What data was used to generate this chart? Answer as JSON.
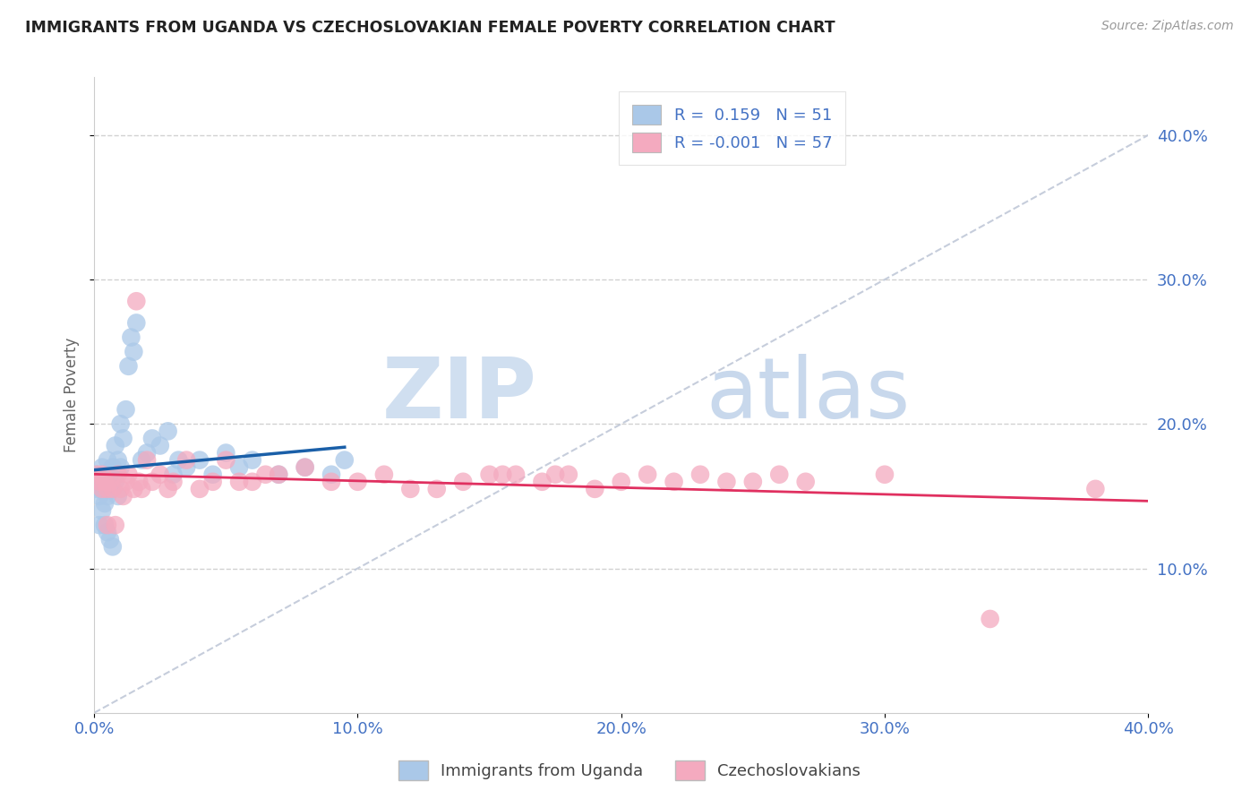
{
  "title": "IMMIGRANTS FROM UGANDA VS CZECHOSLOVAKIAN FEMALE POVERTY CORRELATION CHART",
  "source": "Source: ZipAtlas.com",
  "ylabel": "Female Poverty",
  "xmin": 0.0,
  "xmax": 0.4,
  "ymin": 0.0,
  "ymax": 0.44,
  "yticks": [
    0.1,
    0.2,
    0.3,
    0.4
  ],
  "xticks": [
    0.0,
    0.1,
    0.2,
    0.3,
    0.4
  ],
  "ytick_labels": [
    "10.0%",
    "20.0%",
    "30.0%",
    "40.0%"
  ],
  "xtick_labels": [
    "0.0%",
    "10.0%",
    "20.0%",
    "30.0%",
    "40.0%"
  ],
  "legend_label_blue": "Immigrants from Uganda",
  "legend_label_pink": "Czechoslovakians",
  "r_blue": 0.159,
  "n_blue": 51,
  "r_pink": -0.001,
  "n_pink": 57,
  "blue_color": "#aac8e8",
  "pink_color": "#f4aabf",
  "blue_line_color": "#1a5fa8",
  "pink_line_color": "#e03060",
  "watermark_zip": "ZIP",
  "watermark_atlas": "atlas",
  "blue_x": [
    0.001,
    0.001,
    0.002,
    0.002,
    0.002,
    0.003,
    0.003,
    0.003,
    0.004,
    0.004,
    0.004,
    0.004,
    0.005,
    0.005,
    0.005,
    0.005,
    0.006,
    0.006,
    0.006,
    0.007,
    0.007,
    0.007,
    0.008,
    0.008,
    0.009,
    0.009,
    0.01,
    0.01,
    0.011,
    0.012,
    0.013,
    0.014,
    0.015,
    0.016,
    0.018,
    0.02,
    0.022,
    0.025,
    0.028,
    0.03,
    0.032,
    0.035,
    0.04,
    0.045,
    0.05,
    0.055,
    0.06,
    0.07,
    0.08,
    0.09,
    0.095
  ],
  "blue_y": [
    0.165,
    0.155,
    0.16,
    0.15,
    0.13,
    0.17,
    0.155,
    0.14,
    0.165,
    0.155,
    0.145,
    0.13,
    0.175,
    0.16,
    0.15,
    0.125,
    0.165,
    0.155,
    0.12,
    0.17,
    0.155,
    0.115,
    0.185,
    0.16,
    0.175,
    0.15,
    0.2,
    0.17,
    0.19,
    0.21,
    0.24,
    0.26,
    0.25,
    0.27,
    0.175,
    0.18,
    0.19,
    0.185,
    0.195,
    0.165,
    0.175,
    0.17,
    0.175,
    0.165,
    0.18,
    0.17,
    0.175,
    0.165,
    0.17,
    0.165,
    0.175
  ],
  "pink_x": [
    0.001,
    0.002,
    0.003,
    0.003,
    0.004,
    0.005,
    0.005,
    0.006,
    0.007,
    0.008,
    0.009,
    0.01,
    0.011,
    0.012,
    0.013,
    0.015,
    0.016,
    0.017,
    0.018,
    0.02,
    0.022,
    0.025,
    0.028,
    0.03,
    0.035,
    0.04,
    0.045,
    0.05,
    0.055,
    0.06,
    0.065,
    0.07,
    0.08,
    0.09,
    0.1,
    0.11,
    0.12,
    0.13,
    0.14,
    0.15,
    0.155,
    0.16,
    0.17,
    0.175,
    0.18,
    0.19,
    0.2,
    0.21,
    0.22,
    0.23,
    0.24,
    0.25,
    0.26,
    0.27,
    0.3,
    0.34,
    0.38
  ],
  "pink_y": [
    0.165,
    0.16,
    0.155,
    0.165,
    0.16,
    0.155,
    0.13,
    0.16,
    0.155,
    0.13,
    0.165,
    0.155,
    0.15,
    0.16,
    0.165,
    0.155,
    0.285,
    0.16,
    0.155,
    0.175,
    0.16,
    0.165,
    0.155,
    0.16,
    0.175,
    0.155,
    0.16,
    0.175,
    0.16,
    0.16,
    0.165,
    0.165,
    0.17,
    0.16,
    0.16,
    0.165,
    0.155,
    0.155,
    0.16,
    0.165,
    0.165,
    0.165,
    0.16,
    0.165,
    0.165,
    0.155,
    0.16,
    0.165,
    0.16,
    0.165,
    0.16,
    0.16,
    0.165,
    0.16,
    0.165,
    0.065,
    0.155
  ]
}
